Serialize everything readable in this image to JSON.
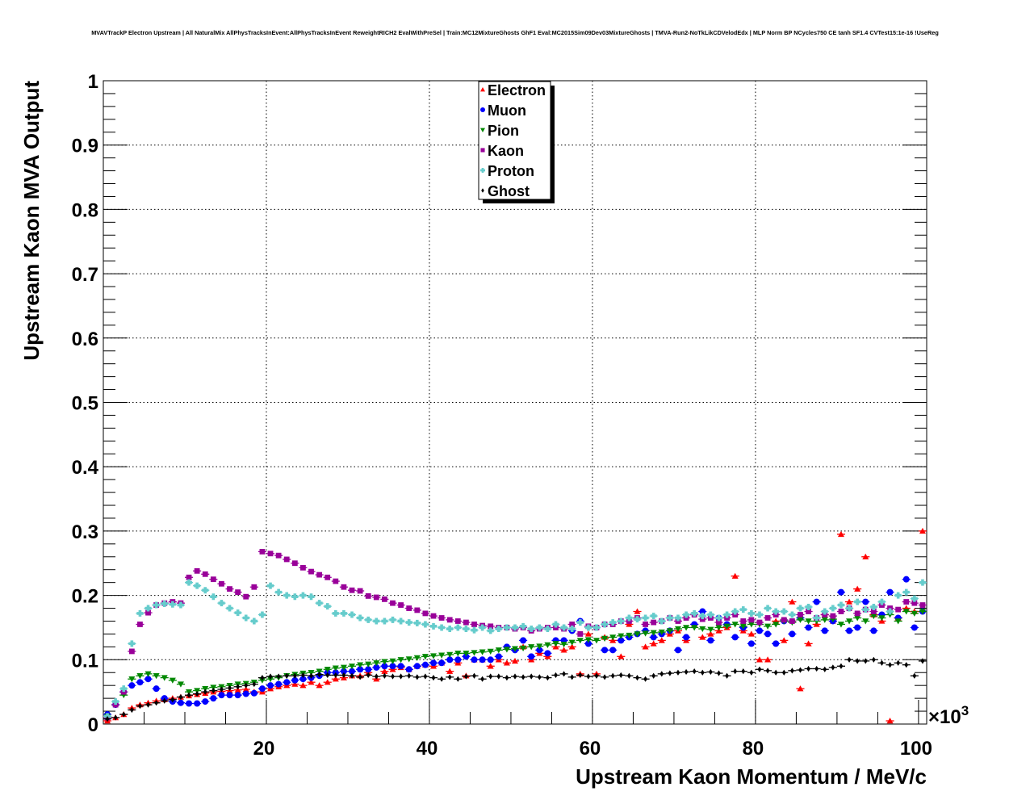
{
  "chart_data": {
    "type": "scatter",
    "title": "MVAVTrackP Electron Upstream | All NaturalMix AllPhysTracksInEvent:AllPhysTracksInEvent ReweightRICH2 EvalWithPreSel | Train:MC12MixtureGhosts GhF1 Eval:MC2015Sim09Dev03MixtureGhosts | TMVA-Run2-NoTkLikCDVelodEdx | MLP Norm BP NCycles750 CE tanh SF1.4 CVTest15:1e-16 !UseReg",
    "xlabel": "Upstream Kaon Momentum / MeV/c",
    "ylabel": "Upstream Kaon MVA Output",
    "x_multiplier": "×10",
    "x_multiplier_exp": "3",
    "xlim": [
      0,
      101
    ],
    "ylim": [
      0,
      1
    ],
    "x_start": 0.5,
    "bin_width": 1,
    "xticks": [
      "20",
      "40",
      "60",
      "80",
      "100"
    ],
    "xtick_values": [
      20,
      40,
      60,
      80,
      100
    ],
    "yticks": [
      "0",
      "0.1",
      "0.2",
      "0.3",
      "0.4",
      "0.5",
      "0.6",
      "0.7",
      "0.8",
      "0.9",
      "1"
    ],
    "ytick_values": [
      0,
      0.1,
      0.2,
      0.3,
      0.4,
      0.5,
      0.6,
      0.7,
      0.8,
      0.9,
      1
    ],
    "grid": true,
    "legend_position": "top-center",
    "series": [
      {
        "name": "Electron",
        "color": "#ff0000",
        "marker": "triangle-up",
        "values": [
          0.005,
          0.01,
          0.015,
          0.025,
          0.03,
          0.033,
          0.036,
          0.038,
          0.04,
          0.042,
          0.044,
          0.046,
          0.048,
          0.05,
          0.051,
          0.052,
          0.053,
          0.054,
          0.05,
          0.05,
          0.055,
          0.058,
          0.06,
          0.062,
          0.06,
          0.065,
          0.06,
          0.065,
          0.07,
          0.072,
          0.075,
          0.075,
          0.08,
          0.07,
          0.082,
          0.085,
          0.088,
          0.085,
          0.09,
          0.092,
          0.09,
          0.095,
          0.082,
          0.095,
          0.075,
          0.1,
          0.1,
          0.09,
          0.1,
          0.095,
          0.098,
          0.12,
          0.1,
          0.11,
          0.105,
          0.12,
          0.115,
          0.12,
          0.078,
          0.14,
          0.078,
          0.135,
          0.13,
          0.105,
          0.155,
          0.175,
          0.12,
          0.125,
          0.13,
          0.14,
          0.145,
          0.13,
          0.155,
          0.135,
          0.14,
          0.145,
          0.15,
          0.23,
          0.145,
          0.14,
          0.1,
          0.1,
          0.16,
          0.13,
          0.19,
          0.055,
          0.125,
          0.155,
          0.17,
          0.16,
          0.295,
          0.19,
          0.21,
          0.26,
          0.17,
          0.16,
          0.005,
          0.165,
          0.18,
          0.175,
          0.3
        ]
      },
      {
        "name": "Muon",
        "color": "#0000ff",
        "marker": "circle",
        "values": [
          0.015,
          0.03,
          0.05,
          0.06,
          0.065,
          0.07,
          0.055,
          0.04,
          0.035,
          0.033,
          0.032,
          0.032,
          0.035,
          0.04,
          0.045,
          0.045,
          0.045,
          0.047,
          0.048,
          0.055,
          0.06,
          0.062,
          0.065,
          0.068,
          0.07,
          0.072,
          0.075,
          0.08,
          0.08,
          0.082,
          0.082,
          0.085,
          0.085,
          0.088,
          0.09,
          0.09,
          0.09,
          0.085,
          0.09,
          0.092,
          0.095,
          0.095,
          0.1,
          0.1,
          0.105,
          0.1,
          0.1,
          0.1,
          0.105,
          0.12,
          0.115,
          0.13,
          0.105,
          0.115,
          0.11,
          0.13,
          0.13,
          0.145,
          0.16,
          0.125,
          0.15,
          0.115,
          0.115,
          0.13,
          0.135,
          0.14,
          0.145,
          0.135,
          0.14,
          0.145,
          0.115,
          0.135,
          0.155,
          0.175,
          0.13,
          0.165,
          0.155,
          0.135,
          0.15,
          0.125,
          0.145,
          0.14,
          0.125,
          0.16,
          0.14,
          0.165,
          0.15,
          0.19,
          0.145,
          0.16,
          0.205,
          0.145,
          0.15,
          0.19,
          0.145,
          0.17,
          0.205,
          0.165,
          0.225,
          0.15,
          0.175
        ]
      },
      {
        "name": "Pion",
        "color": "#008800",
        "marker": "triangle-down",
        "values": [
          0.012,
          0.03,
          0.045,
          0.07,
          0.075,
          0.078,
          0.075,
          0.072,
          0.068,
          0.062,
          0.05,
          0.052,
          0.055,
          0.057,
          0.058,
          0.06,
          0.062,
          0.063,
          0.065,
          0.068,
          0.07,
          0.072,
          0.075,
          0.077,
          0.079,
          0.08,
          0.082,
          0.085,
          0.087,
          0.088,
          0.09,
          0.092,
          0.093,
          0.095,
          0.097,
          0.098,
          0.1,
          0.101,
          0.103,
          0.105,
          0.106,
          0.107,
          0.108,
          0.11,
          0.11,
          0.111,
          0.112,
          0.113,
          0.115,
          0.116,
          0.117,
          0.118,
          0.12,
          0.121,
          0.123,
          0.125,
          0.124,
          0.127,
          0.13,
          0.131,
          0.13,
          0.133,
          0.135,
          0.137,
          0.138,
          0.14,
          0.141,
          0.142,
          0.143,
          0.145,
          0.148,
          0.15,
          0.15,
          0.148,
          0.147,
          0.15,
          0.152,
          0.155,
          0.152,
          0.155,
          0.155,
          0.152,
          0.155,
          0.16,
          0.158,
          0.162,
          0.16,
          0.16,
          0.162,
          0.163,
          0.155,
          0.16,
          0.165,
          0.16,
          0.168,
          0.165,
          0.17,
          0.16,
          0.175,
          0.172,
          0.175
        ]
      },
      {
        "name": "Kaon",
        "color": "#990099",
        "marker": "square",
        "values": [
          0.01,
          0.03,
          0.05,
          0.113,
          0.155,
          0.173,
          0.185,
          0.188,
          0.19,
          0.188,
          0.228,
          0.238,
          0.233,
          0.225,
          0.218,
          0.21,
          0.205,
          0.198,
          0.213,
          0.268,
          0.265,
          0.262,
          0.256,
          0.25,
          0.243,
          0.237,
          0.232,
          0.228,
          0.222,
          0.213,
          0.208,
          0.207,
          0.199,
          0.197,
          0.194,
          0.188,
          0.185,
          0.18,
          0.177,
          0.172,
          0.168,
          0.165,
          0.162,
          0.16,
          0.158,
          0.155,
          0.153,
          0.152,
          0.15,
          0.15,
          0.148,
          0.15,
          0.145,
          0.148,
          0.15,
          0.15,
          0.148,
          0.155,
          0.14,
          0.152,
          0.15,
          0.155,
          0.155,
          0.16,
          0.16,
          0.165,
          0.155,
          0.158,
          0.16,
          0.165,
          0.16,
          0.165,
          0.17,
          0.163,
          0.165,
          0.158,
          0.165,
          0.17,
          0.16,
          0.162,
          0.158,
          0.165,
          0.17,
          0.162,
          0.16,
          0.17,
          0.175,
          0.165,
          0.17,
          0.168,
          0.175,
          0.18,
          0.172,
          0.178,
          0.175,
          0.185,
          0.18,
          0.178,
          0.19,
          0.188,
          0.185
        ]
      },
      {
        "name": "Proton",
        "color": "#66cccc",
        "marker": "cross",
        "values": [
          0.012,
          0.035,
          0.055,
          0.125,
          0.172,
          0.18,
          0.185,
          0.187,
          0.186,
          0.185,
          0.22,
          0.215,
          0.208,
          0.198,
          0.188,
          0.18,
          0.173,
          0.165,
          0.16,
          0.17,
          0.215,
          0.205,
          0.2,
          0.198,
          0.2,
          0.198,
          0.188,
          0.183,
          0.172,
          0.172,
          0.17,
          0.165,
          0.162,
          0.16,
          0.16,
          0.162,
          0.16,
          0.158,
          0.157,
          0.155,
          0.152,
          0.15,
          0.148,
          0.15,
          0.148,
          0.146,
          0.15,
          0.145,
          0.148,
          0.15,
          0.15,
          0.152,
          0.148,
          0.15,
          0.148,
          0.155,
          0.15,
          0.148,
          0.158,
          0.15,
          0.15,
          0.155,
          0.158,
          0.16,
          0.165,
          0.163,
          0.165,
          0.168,
          0.16,
          0.165,
          0.165,
          0.17,
          0.172,
          0.168,
          0.17,
          0.165,
          0.17,
          0.175,
          0.178,
          0.172,
          0.17,
          0.18,
          0.175,
          0.175,
          0.17,
          0.18,
          0.182,
          0.165,
          0.175,
          0.18,
          0.185,
          0.18,
          0.19,
          0.178,
          0.182,
          0.19,
          0.175,
          0.2,
          0.205,
          0.195,
          0.22
        ]
      },
      {
        "name": "Ghost",
        "color": "#000000",
        "marker": "diamond",
        "values": [
          0.008,
          0.01,
          0.015,
          0.022,
          0.028,
          0.03,
          0.033,
          0.036,
          0.038,
          0.042,
          0.045,
          0.047,
          0.05,
          0.052,
          0.054,
          0.056,
          0.058,
          0.06,
          0.062,
          0.072,
          0.074,
          0.074,
          0.075,
          0.075,
          0.076,
          0.075,
          0.077,
          0.076,
          0.076,
          0.076,
          0.075,
          0.073,
          0.076,
          0.074,
          0.075,
          0.074,
          0.074,
          0.075,
          0.073,
          0.074,
          0.072,
          0.07,
          0.073,
          0.07,
          0.074,
          0.075,
          0.07,
          0.074,
          0.074,
          0.072,
          0.074,
          0.073,
          0.074,
          0.073,
          0.072,
          0.076,
          0.078,
          0.073,
          0.076,
          0.074,
          0.075,
          0.073,
          0.075,
          0.076,
          0.075,
          0.072,
          0.07,
          0.075,
          0.078,
          0.079,
          0.08,
          0.081,
          0.082,
          0.08,
          0.081,
          0.079,
          0.075,
          0.082,
          0.082,
          0.08,
          0.085,
          0.083,
          0.08,
          0.08,
          0.083,
          0.084,
          0.086,
          0.086,
          0.085,
          0.088,
          0.09,
          0.1,
          0.098,
          0.098,
          0.1,
          0.095,
          0.092,
          0.095,
          0.092,
          0.075,
          0.098
        ]
      }
    ]
  }
}
